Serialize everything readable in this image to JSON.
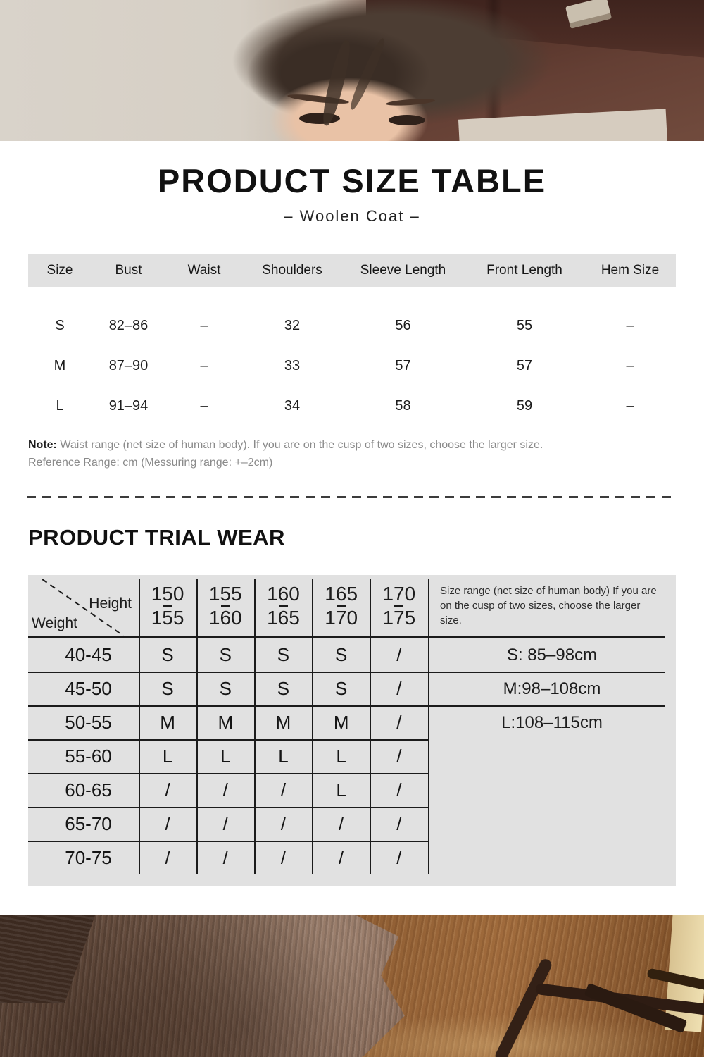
{
  "header": {
    "title": "PRODUCT SIZE TABLE",
    "subtitle": "– Woolen Coat –"
  },
  "size_table": {
    "columns": [
      "Size",
      "Bust",
      "Waist",
      "Shoulders",
      "Sleeve Length",
      "Front Length",
      "Hem Size"
    ],
    "rows": [
      [
        "S",
        "82–86",
        "–",
        "32",
        "56",
        "55",
        "–"
      ],
      [
        "M",
        "87–90",
        "–",
        "33",
        "57",
        "57",
        "–"
      ],
      [
        "L",
        "91–94",
        "–",
        "34",
        "58",
        "59",
        "–"
      ]
    ]
  },
  "notes": {
    "note_label": "Note:",
    "note_text": " Waist range (net size of human body). If you are on the cusp of two sizes, choose the larger size.",
    "reference": "Reference Range: cm (Messuring range: +–2cm)"
  },
  "trial_wear": {
    "heading": "PRODUCT TRIAL WEAR",
    "axis": {
      "height_label": "Height",
      "weight_label": "Weight"
    },
    "height_ranges": [
      [
        "150",
        "155"
      ],
      [
        "155",
        "160"
      ],
      [
        "160",
        "165"
      ],
      [
        "165",
        "170"
      ],
      [
        "170",
        "175"
      ]
    ],
    "rows": [
      {
        "weight": "40-45",
        "cells": [
          "S",
          "S",
          "S",
          "S",
          "/"
        ]
      },
      {
        "weight": "45-50",
        "cells": [
          "S",
          "S",
          "S",
          "S",
          "/"
        ]
      },
      {
        "weight": "50-55",
        "cells": [
          "M",
          "M",
          "M",
          "M",
          "/"
        ]
      },
      {
        "weight": "55-60",
        "cells": [
          "L",
          "L",
          "L",
          "L",
          "/"
        ]
      },
      {
        "weight": "60-65",
        "cells": [
          "/",
          "/",
          "/",
          "L",
          "/"
        ]
      },
      {
        "weight": "65-70",
        "cells": [
          "/",
          "/",
          "/",
          "/",
          "/"
        ]
      },
      {
        "weight": "70-75",
        "cells": [
          "/",
          "/",
          "/",
          "/",
          "/"
        ]
      }
    ],
    "side_note": "Size range (net size of human body) If you are\non the cusp of two sizes, choose the larger\nsize.",
    "size_ranges": [
      "S: 85–98cm",
      "M:98–108cm",
      "L:108–115cm"
    ]
  },
  "colors": {
    "panel_gray": "#e1e1e1",
    "grid_line": "#1b1b1b",
    "heading_text": "#111111",
    "note_gray": "#8a8a8a",
    "wood_brown": "#6b463c",
    "fabric_brown": "#8a6b58"
  }
}
